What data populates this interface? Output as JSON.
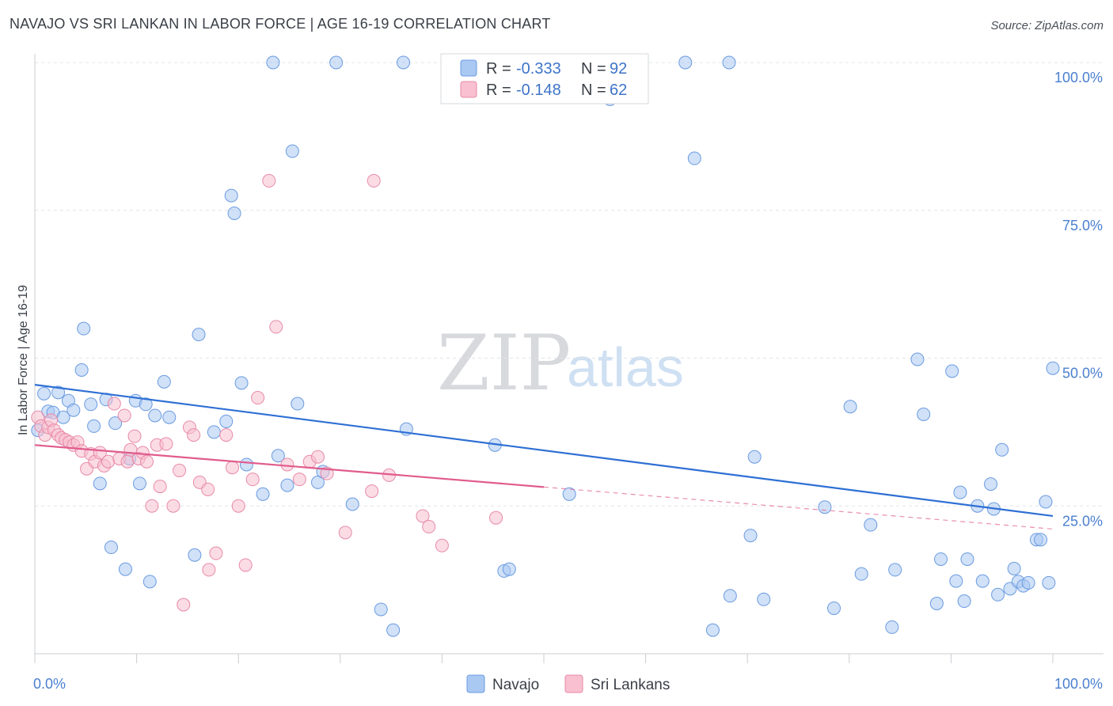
{
  "title": "NAVAJO VS SRI LANKAN IN LABOR FORCE | AGE 16-19 CORRELATION CHART",
  "source": "Source: ZipAtlas.com",
  "watermark": {
    "zip": "ZIP",
    "atlas": "atlas"
  },
  "legend": {
    "r_label": "R =",
    "n_label": "N =",
    "rows": [
      {
        "r": "-0.333",
        "n": "92",
        "color": "#a9c8f2",
        "stroke": "#6b9be0"
      },
      {
        "r": "-0.148",
        "n": "62",
        "color": "#f8c0d0",
        "stroke": "#e88aa8"
      }
    ]
  },
  "bottom_legend": [
    "Navajo",
    "Sri Lankans"
  ],
  "chart_data": {
    "type": "scatter",
    "title": "NAVAJO VS SRI LANKAN IN LABOR FORCE | AGE 16-19 CORRELATION CHART",
    "xlabel": "",
    "ylabel": "In Labor Force | Age 16-19",
    "xlim": [
      0,
      100
    ],
    "ylim": [
      0,
      100
    ],
    "x_tick_labels": [
      "0.0%",
      "100.0%"
    ],
    "y_tick_labels": [
      "100.0%",
      "75.0%",
      "50.0%",
      "25.0%"
    ],
    "y_ticks": [
      100,
      75,
      50,
      25
    ],
    "grid": "horizontal dashed",
    "legend_position": "top-center",
    "series": [
      {
        "name": "Navajo",
        "color": "#a9c8f2",
        "stroke": "#6b9be0",
        "line_color": "#2e6fd4",
        "trend": {
          "x0": 0,
          "y0": 45.5,
          "x1": 100,
          "y1": 23.3
        },
        "points": [
          [
            0.3,
            37.8
          ],
          [
            0.9,
            44.0
          ],
          [
            1.3,
            41.0
          ],
          [
            1.8,
            40.8
          ],
          [
            2.3,
            44.2
          ],
          [
            2.8,
            40.0
          ],
          [
            3.3,
            42.8
          ],
          [
            3.8,
            41.2
          ],
          [
            4.6,
            48.0
          ],
          [
            4.8,
            55.0
          ],
          [
            5.5,
            42.2
          ],
          [
            5.8,
            38.5
          ],
          [
            6.4,
            28.8
          ],
          [
            7.0,
            43.0
          ],
          [
            7.5,
            18.0
          ],
          [
            7.9,
            39.0
          ],
          [
            8.9,
            14.3
          ],
          [
            9.3,
            33.0
          ],
          [
            9.9,
            42.8
          ],
          [
            10.3,
            28.8
          ],
          [
            10.9,
            42.2
          ],
          [
            11.3,
            12.2
          ],
          [
            11.8,
            40.3
          ],
          [
            12.7,
            46.0
          ],
          [
            13.2,
            40.0
          ],
          [
            15.7,
            16.7
          ],
          [
            16.1,
            54.0
          ],
          [
            17.6,
            37.5
          ],
          [
            18.8,
            39.3
          ],
          [
            19.3,
            77.5
          ],
          [
            19.6,
            74.5
          ],
          [
            20.3,
            45.8
          ],
          [
            20.8,
            32.0
          ],
          [
            22.4,
            27.0
          ],
          [
            23.4,
            100.0
          ],
          [
            23.9,
            33.5
          ],
          [
            24.8,
            28.5
          ],
          [
            25.3,
            85.0
          ],
          [
            25.8,
            42.3
          ],
          [
            27.8,
            29.0
          ],
          [
            28.3,
            30.8
          ],
          [
            29.6,
            100.0
          ],
          [
            31.2,
            25.3
          ],
          [
            34.0,
            7.5
          ],
          [
            35.2,
            4.0
          ],
          [
            36.2,
            100.0
          ],
          [
            36.5,
            38.0
          ],
          [
            45.2,
            35.3
          ],
          [
            46.1,
            14.0
          ],
          [
            46.6,
            14.3
          ],
          [
            52.5,
            27.0
          ],
          [
            56.5,
            93.8
          ],
          [
            63.9,
            100.0
          ],
          [
            64.8,
            83.8
          ],
          [
            66.6,
            4.0
          ],
          [
            68.2,
            100.0
          ],
          [
            68.3,
            9.8
          ],
          [
            70.3,
            20.0
          ],
          [
            70.7,
            33.3
          ],
          [
            71.6,
            9.2
          ],
          [
            77.6,
            24.8
          ],
          [
            78.5,
            7.7
          ],
          [
            80.1,
            41.8
          ],
          [
            81.2,
            13.5
          ],
          [
            82.1,
            21.8
          ],
          [
            84.2,
            4.5
          ],
          [
            84.5,
            14.2
          ],
          [
            86.7,
            49.8
          ],
          [
            87.3,
            40.5
          ],
          [
            88.6,
            8.5
          ],
          [
            89.0,
            16.0
          ],
          [
            90.1,
            47.8
          ],
          [
            90.5,
            12.3
          ],
          [
            90.9,
            27.3
          ],
          [
            91.3,
            8.9
          ],
          [
            91.6,
            16.0
          ],
          [
            92.6,
            25.0
          ],
          [
            93.1,
            12.3
          ],
          [
            93.9,
            28.7
          ],
          [
            94.2,
            24.5
          ],
          [
            94.6,
            10.0
          ],
          [
            95.0,
            34.5
          ],
          [
            95.8,
            11.0
          ],
          [
            96.2,
            14.4
          ],
          [
            96.6,
            12.2
          ],
          [
            97.1,
            11.5
          ],
          [
            97.6,
            12.0
          ],
          [
            98.4,
            19.3
          ],
          [
            98.8,
            19.3
          ],
          [
            99.3,
            25.7
          ],
          [
            99.6,
            12.0
          ],
          [
            100.0,
            48.3
          ]
        ]
      },
      {
        "name": "Sri Lankans",
        "color": "#f8c0d0",
        "stroke": "#e88aa8",
        "line_color": "#e05c8c",
        "trend": {
          "x0": 0,
          "y0": 35.3,
          "x1": 50,
          "y1": 28.2,
          "dash_to_x": 100,
          "dash_to_y": 21.1
        },
        "points": [
          [
            0.3,
            40.0
          ],
          [
            0.6,
            38.5
          ],
          [
            1.0,
            37.0
          ],
          [
            1.3,
            38.3
          ],
          [
            1.6,
            39.5
          ],
          [
            1.9,
            37.8
          ],
          [
            2.3,
            37.0
          ],
          [
            2.6,
            36.5
          ],
          [
            3.0,
            36.2
          ],
          [
            3.4,
            35.8
          ],
          [
            3.8,
            35.3
          ],
          [
            4.2,
            35.8
          ],
          [
            4.6,
            34.3
          ],
          [
            5.1,
            31.3
          ],
          [
            5.5,
            33.8
          ],
          [
            5.9,
            32.5
          ],
          [
            6.4,
            34.0
          ],
          [
            6.8,
            31.8
          ],
          [
            7.2,
            32.5
          ],
          [
            7.8,
            42.3
          ],
          [
            8.3,
            33.0
          ],
          [
            8.8,
            40.3
          ],
          [
            9.1,
            32.5
          ],
          [
            9.4,
            34.5
          ],
          [
            9.8,
            36.8
          ],
          [
            10.2,
            33.0
          ],
          [
            10.6,
            34.0
          ],
          [
            11.0,
            32.5
          ],
          [
            11.5,
            25.0
          ],
          [
            12.0,
            35.3
          ],
          [
            12.3,
            28.3
          ],
          [
            12.9,
            35.5
          ],
          [
            13.6,
            25.0
          ],
          [
            14.2,
            31.0
          ],
          [
            14.6,
            8.3
          ],
          [
            15.2,
            38.3
          ],
          [
            15.6,
            37.0
          ],
          [
            16.2,
            29.0
          ],
          [
            17.0,
            27.8
          ],
          [
            17.8,
            17.0
          ],
          [
            17.1,
            14.2
          ],
          [
            18.8,
            37.0
          ],
          [
            19.4,
            31.5
          ],
          [
            20.0,
            25.0
          ],
          [
            20.7,
            15.0
          ],
          [
            21.4,
            29.5
          ],
          [
            21.9,
            43.3
          ],
          [
            23.0,
            80.0
          ],
          [
            23.7,
            55.3
          ],
          [
            24.8,
            32.0
          ],
          [
            26.0,
            29.5
          ],
          [
            27.0,
            32.5
          ],
          [
            27.8,
            33.3
          ],
          [
            28.7,
            30.5
          ],
          [
            30.5,
            20.5
          ],
          [
            33.1,
            27.5
          ],
          [
            33.3,
            80.0
          ],
          [
            34.8,
            30.2
          ],
          [
            38.1,
            23.3
          ],
          [
            38.7,
            21.5
          ],
          [
            40.0,
            18.3
          ],
          [
            45.3,
            23.0
          ]
        ]
      }
    ]
  }
}
